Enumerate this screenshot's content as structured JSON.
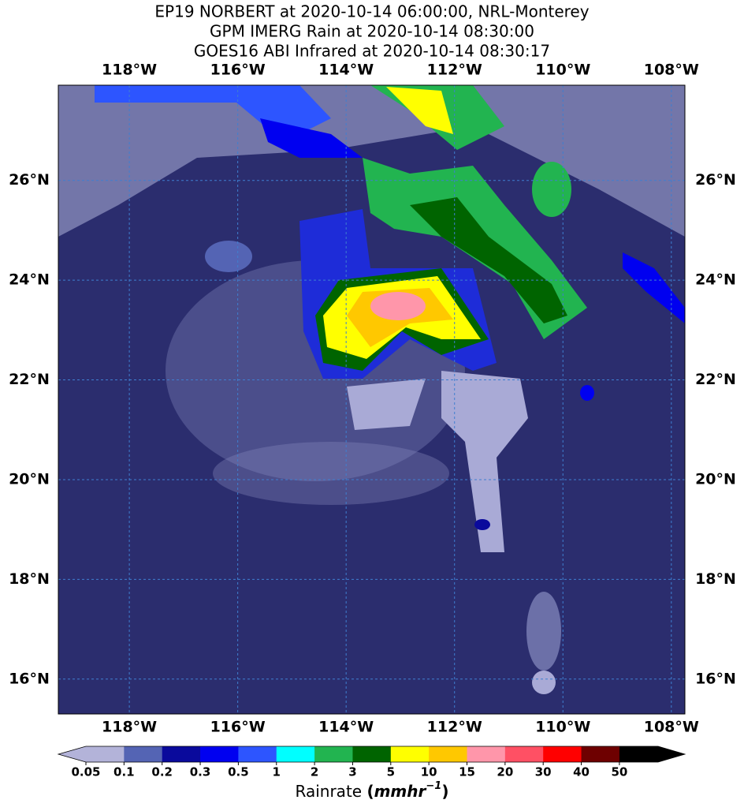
{
  "title": [
    "EP19 NORBERT at 2020-10-14 06:00:00, NRL-Monterey",
    "GPM IMERG Rain at 2020-10-14 08:30:00",
    "GOES16 ABI Infrared at 2020-10-14 08:30:17"
  ],
  "map": {
    "lon_range": [
      -119.31,
      -107.75
    ],
    "lat_range": [
      15.3,
      27.91
    ],
    "lon_ticks": [
      {
        "value": -118,
        "label": "118°W"
      },
      {
        "value": -116,
        "label": "116°W"
      },
      {
        "value": -114,
        "label": "114°W"
      },
      {
        "value": -112,
        "label": "112°W"
      },
      {
        "value": -110,
        "label": "110°W"
      },
      {
        "value": -108,
        "label": "108°W"
      }
    ],
    "lat_ticks": [
      {
        "value": 26,
        "label": "26°N"
      },
      {
        "value": 24,
        "label": "24°N"
      },
      {
        "value": 22,
        "label": "22°N"
      },
      {
        "value": 20,
        "label": "20°N"
      },
      {
        "value": 18,
        "label": "18°N"
      },
      {
        "value": 16,
        "label": "16°N"
      }
    ],
    "grid": true
  },
  "colorbar": {
    "ticks": [
      0.05,
      0.1,
      0.2,
      0.3,
      0.5,
      1,
      2,
      3,
      5,
      10,
      15,
      20,
      30,
      40,
      50
    ],
    "colors": [
      "#b3b3d9",
      "#b3b3d9",
      "#5464b4",
      "#0a0a9c",
      "#0000f0",
      "#2d55ff",
      "#00ffff",
      "#22b450",
      "#006400",
      "#ffff00",
      "#ffc800",
      "#ff96aa",
      "#ff5064",
      "#ff0000",
      "#6e0000",
      "#000000"
    ],
    "label": "Rainrate",
    "unit_open": "(",
    "unit": "mmhr",
    "unit_exponent": "−1",
    "unit_close": ")"
  }
}
